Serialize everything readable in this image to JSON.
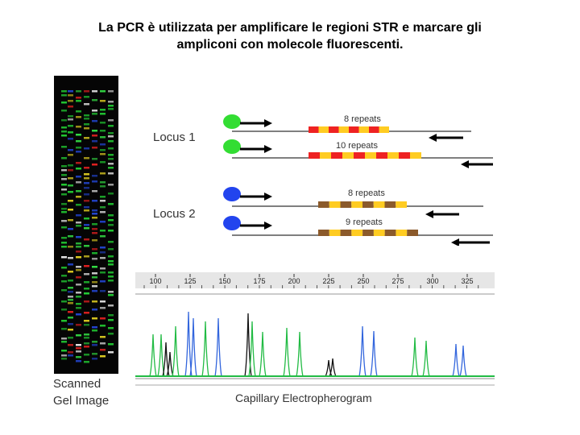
{
  "title": {
    "line1": "La PCR è utilizzata per amplificare le regioni STR e marcare gli",
    "line2": "ampliconi con molecole fluorescenti."
  },
  "gel": {
    "caption_line1": "Scanned",
    "caption_line2": "Gel Image"
  },
  "schematic": {
    "locus1": {
      "label": "Locus 1",
      "primer_color": "#33dd33",
      "alleles": [
        {
          "label": "8 repeats",
          "repeats": 8
        },
        {
          "label": "10 repeats",
          "repeats": 10
        }
      ],
      "repeat_colors": [
        "#ee2222",
        "#ffcc22"
      ]
    },
    "locus2": {
      "label": "Locus 2",
      "primer_color": "#2244ee",
      "alleles": [
        {
          "label": "8 repeats",
          "repeats": 8
        },
        {
          "label": "9 repeats",
          "repeats": 9
        }
      ],
      "repeat_colors": [
        "#8b5a2b",
        "#ffcc22"
      ]
    }
  },
  "electropherogram": {
    "caption": "Capillary Electropherogram",
    "ticks": [
      "100",
      "125",
      "150",
      "175",
      "200",
      "225",
      "250",
      "275",
      "300",
      "325"
    ],
    "peak_colors": {
      "green": "#22bb44",
      "blue": "#3366dd",
      "black": "#111111"
    }
  }
}
